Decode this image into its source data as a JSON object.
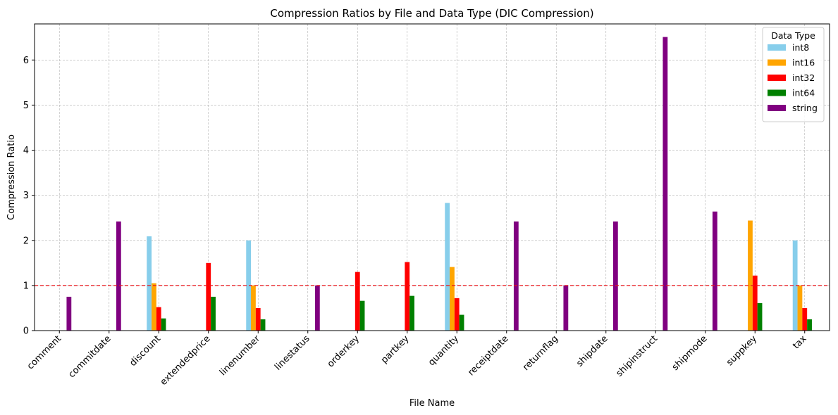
{
  "chart_data": {
    "type": "bar",
    "title": "Compression Ratios by File and Data Type (DIC Compression)",
    "xlabel": "File Name",
    "ylabel": "Compression Ratio",
    "ylim": [
      0,
      6.8
    ],
    "yticks": [
      0,
      1,
      2,
      3,
      4,
      5,
      6
    ],
    "grid": true,
    "reference_line": {
      "y": 1,
      "color": "#e8141a",
      "style": "dashed"
    },
    "legend": {
      "title": "Data Type",
      "placement": "top-right"
    },
    "categories": [
      "comment",
      "commitdate",
      "discount",
      "extendedprice",
      "linenumber",
      "linestatus",
      "orderkey",
      "partkey",
      "quantity",
      "receiptdate",
      "returnflag",
      "shipdate",
      "shipinstruct",
      "shipmode",
      "suppkey",
      "tax"
    ],
    "series": [
      {
        "name": "int8",
        "color": "#87ceeb",
        "values": [
          null,
          null,
          2.09,
          null,
          2.0,
          null,
          null,
          null,
          2.83,
          null,
          null,
          null,
          null,
          null,
          null,
          2.0
        ]
      },
      {
        "name": "int16",
        "color": "#ffa500",
        "values": [
          null,
          null,
          1.05,
          null,
          1.0,
          null,
          null,
          null,
          1.41,
          null,
          null,
          null,
          null,
          null,
          2.44,
          1.0
        ]
      },
      {
        "name": "int32",
        "color": "#ff0000",
        "values": [
          null,
          null,
          0.52,
          1.5,
          0.5,
          null,
          1.3,
          1.52,
          0.72,
          null,
          null,
          null,
          null,
          null,
          1.22,
          0.5
        ]
      },
      {
        "name": "int64",
        "color": "#008000",
        "values": [
          null,
          null,
          0.27,
          0.75,
          0.25,
          null,
          0.66,
          0.77,
          0.35,
          null,
          null,
          null,
          null,
          null,
          0.61,
          0.25
        ]
      },
      {
        "name": "string",
        "color": "#800080",
        "values": [
          0.75,
          2.42,
          null,
          null,
          null,
          1.0,
          null,
          null,
          null,
          2.42,
          1.0,
          2.42,
          6.51,
          2.64,
          null,
          null
        ]
      }
    ]
  }
}
